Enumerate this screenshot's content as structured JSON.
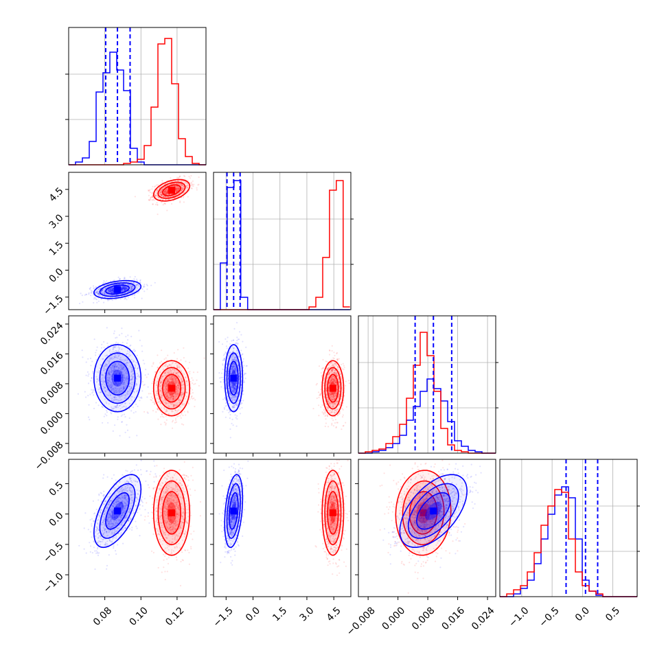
{
  "chart_data": {
    "type": "corner",
    "parameters": 4,
    "series": [
      {
        "color": "#0000ff"
      },
      {
        "color": "#ff0000"
      }
    ],
    "axes": {
      "p0": {
        "range": [
          0.06,
          0.136
        ],
        "ticks": [
          0.08,
          0.1,
          0.12
        ],
        "tick_labels": [
          "0.08",
          "0.10",
          "0.12"
        ]
      },
      "p1": {
        "range": [
          -2.2,
          5.45
        ],
        "ticks": [
          -1.5,
          0.0,
          1.5,
          3.0,
          4.5
        ],
        "tick_labels": [
          "−1.5",
          "0.0",
          "1.5",
          "3.0",
          "4.5"
        ]
      },
      "p2": {
        "range": [
          -0.0106,
          0.0262
        ],
        "ticks": [
          -0.008,
          0.0,
          0.008,
          0.016,
          0.024
        ],
        "tick_labels": [
          "−0.008",
          "0.000",
          "0.008",
          "0.016",
          "0.024"
        ]
      },
      "p3": {
        "range": [
          -1.36,
          0.9
        ],
        "ticks": [
          -1.0,
          -0.5,
          0.0,
          0.5
        ],
        "tick_labels": [
          "−1.0",
          "−0.5",
          "0.0",
          "0.5"
        ]
      }
    },
    "quantile_lines": {
      "p0": [
        0.0805,
        0.087,
        0.094
      ],
      "p1": [
        -1.45,
        -1.08,
        -0.72
      ],
      "p2": [
        0.0046,
        0.0095,
        0.0144
      ],
      "p3": [
        -0.27,
        0.05,
        0.25
      ]
    },
    "histograms": {
      "p0": {
        "bin_start": 0.06,
        "bin_width": 0.0038,
        "blue": [
          0.0,
          0.02,
          0.05,
          0.17,
          0.53,
          0.67,
          0.82,
          0.69,
          0.54,
          0.12,
          0.02,
          0.0,
          0.0,
          0.0,
          0.0,
          0.0,
          0.0,
          0.0,
          0.0,
          0.0
        ],
        "red": [
          0.0,
          0.0,
          0.0,
          0.0,
          0.0,
          0.0,
          0.0,
          0.0,
          0.01,
          0.02,
          0.04,
          0.14,
          0.42,
          0.88,
          0.92,
          0.59,
          0.19,
          0.06,
          0.01,
          0.0
        ]
      },
      "p1": {
        "bin_start": -2.2,
        "bin_width": 0.38,
        "blue": [
          0.0,
          0.34,
          0.89,
          0.94,
          0.09,
          0.0,
          0.0,
          0.0,
          0.0,
          0.0,
          0.0,
          0.0,
          0.0,
          0.0,
          0.0,
          0.0,
          0.0,
          0.0,
          0.0,
          0.0
        ],
        "red": [
          0.0,
          0.0,
          0.0,
          0.0,
          0.0,
          0.0,
          0.0,
          0.0,
          0.0,
          0.0,
          0.0,
          0.0,
          0.0,
          0.0,
          0.02,
          0.09,
          0.38,
          0.87,
          0.94,
          0.02
        ]
      },
      "p2": {
        "bin_start": -0.0106,
        "bin_width": 0.00184,
        "blue": [
          0.0,
          0.0,
          0.01,
          0.02,
          0.04,
          0.07,
          0.13,
          0.24,
          0.34,
          0.45,
          0.54,
          0.47,
          0.38,
          0.23,
          0.09,
          0.05,
          0.02,
          0.01,
          0.0,
          0.0
        ],
        "red": [
          0.0,
          0.01,
          0.02,
          0.03,
          0.07,
          0.12,
          0.21,
          0.4,
          0.64,
          0.88,
          0.71,
          0.45,
          0.18,
          0.06,
          0.02,
          0.01,
          0.0,
          0.0,
          0.0,
          0.0
        ],
        "vgrid_extra": [
          -0.0067
        ]
      },
      "p3": {
        "bin_start": -1.36,
        "bin_width": 0.113,
        "blue": [
          0.0,
          0.0,
          0.02,
          0.06,
          0.12,
          0.24,
          0.42,
          0.6,
          0.74,
          0.8,
          0.72,
          0.42,
          0.12,
          0.04,
          0.01,
          0.0,
          0.0,
          0.0,
          0.0,
          0.0
        ],
        "red": [
          0.0,
          0.02,
          0.05,
          0.08,
          0.18,
          0.32,
          0.52,
          0.66,
          0.78,
          0.76,
          0.42,
          0.18,
          0.08,
          0.04,
          0.02,
          0.0,
          0.0,
          0.0,
          0.0,
          0.0
        ]
      }
    },
    "distributions": {
      "blue": {
        "mean": [
          0.087,
          -1.08,
          0.0095,
          0.05
        ],
        "sd": [
          0.0065,
          0.25,
          0.0045,
          0.3
        ],
        "corr": {
          "0_1": 0.35,
          "0_2": 0.0,
          "0_3": 0.6,
          "1_2": 0.0,
          "1_3": 0.35,
          "2_3": 0.55
        }
      },
      "red": {
        "mean": [
          0.117,
          4.45,
          0.0068,
          0.02
        ],
        "sd": [
          0.005,
          0.3,
          0.0037,
          0.35
        ],
        "corr": {
          "0_1": 0.4,
          "0_2": 0.0,
          "0_3": 0.0,
          "1_2": 0.0,
          "1_3": 0.0,
          "2_3": 0.05
        }
      }
    }
  }
}
